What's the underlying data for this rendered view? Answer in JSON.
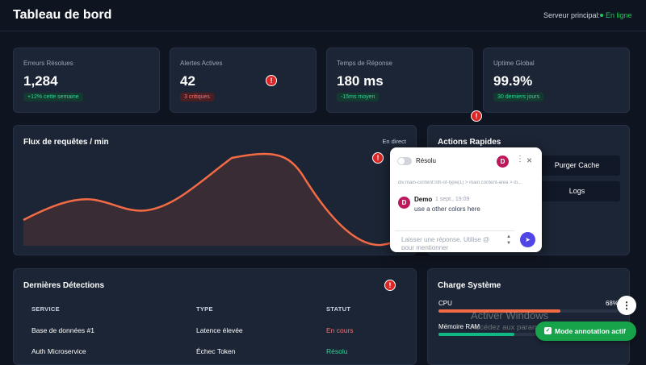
{
  "header": {
    "title": "Tableau de bord",
    "server_label": "Serveur principal:",
    "server_status": "En ligne"
  },
  "stats": [
    {
      "label": "Erreurs Résolues",
      "value": "1,284",
      "badge": "+12% cette semaine",
      "tone": "green"
    },
    {
      "label": "Alertes Actives",
      "value": "42",
      "badge": "3 critiques",
      "tone": "red"
    },
    {
      "label": "Temps de Réponse",
      "value": "180 ms",
      "badge": "-15ms moyen",
      "tone": "green"
    },
    {
      "label": "Uptime Global",
      "value": "99.9%",
      "badge": "30 derniers jours",
      "tone": "green"
    }
  ],
  "chart_panel": {
    "title": "Flux de requêtes / min",
    "badge": "En direct"
  },
  "actions": {
    "title": "Actions Rapides",
    "buttons": [
      "Purger Cache",
      "Logs"
    ]
  },
  "comment_popup": {
    "toggle_label": "Résolu",
    "avatar": "D",
    "selector": "div.main-content:nth-of-type(1) > main.content-area > di...",
    "comment": {
      "avatar": "D",
      "author": "Demo",
      "date": "1 sept., 19:09",
      "text": "use a other colors here"
    },
    "reply_placeholder": "Laisser une réponse. Utilise @ pour mentionner"
  },
  "detections": {
    "title": "Dernières Détections",
    "columns": [
      "SERVICE",
      "TYPE",
      "STATUT"
    ],
    "rows": [
      [
        "Base de données #1",
        "Latence élevée",
        "En cours"
      ],
      [
        "Auth Microservice",
        "Échec Token",
        "Résolu"
      ]
    ]
  },
  "system": {
    "title": "Charge Système",
    "metrics": [
      {
        "label": "CPU",
        "value": "68%"
      },
      {
        "label": "Mémoire RAM"
      }
    ]
  },
  "watermark": {
    "title": "Activer Windows",
    "text": "Accédez aux paramètres pour activer Windows."
  },
  "annotation_badge": "Mode annotation actif"
}
